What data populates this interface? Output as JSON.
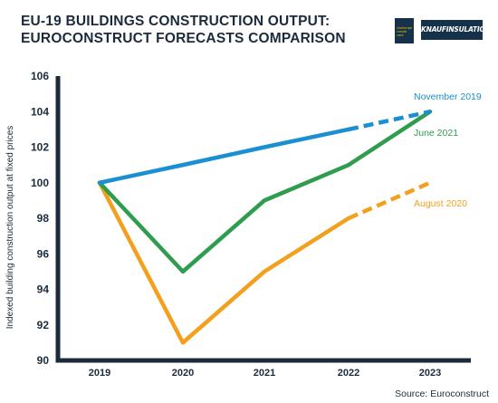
{
  "header": {
    "title_line1": "EU-19 BUILDINGS CONSTRUCTION OUTPUT:",
    "title_line2": "EUROCONSTRUCT FORECASTS COMPARISON",
    "logo_small_text": "challenge create care",
    "logo_brand_text": "KNAUFINSULATION"
  },
  "source": "Source: Euroconstruct",
  "chart_data": {
    "type": "line",
    "title": "EU-19 BUILDINGS CONSTRUCTION OUTPUT: EUROCONSTRUCT FORECASTS COMPARISON",
    "xlabel": "",
    "ylabel": "Indexed building construction output at fixed prices",
    "categories": [
      "2019",
      "2020",
      "2021",
      "2022",
      "2023"
    ],
    "ylim": [
      90,
      106
    ],
    "yticks": [
      90,
      92,
      94,
      96,
      98,
      100,
      102,
      104,
      106
    ],
    "grid": false,
    "series": [
      {
        "name": "November 2019",
        "color": "#1a8fd1",
        "values": [
          100,
          101,
          102,
          103,
          104
        ],
        "dashed_from_index": 3
      },
      {
        "name": "June 2021",
        "color": "#2e9d4e",
        "values": [
          100,
          95,
          99,
          101,
          104
        ],
        "dashed_from_index": null
      },
      {
        "name": "August 2020",
        "color": "#f2a01e",
        "values": [
          100,
          91,
          95,
          98,
          100
        ],
        "dashed_from_index": 3
      }
    ]
  }
}
